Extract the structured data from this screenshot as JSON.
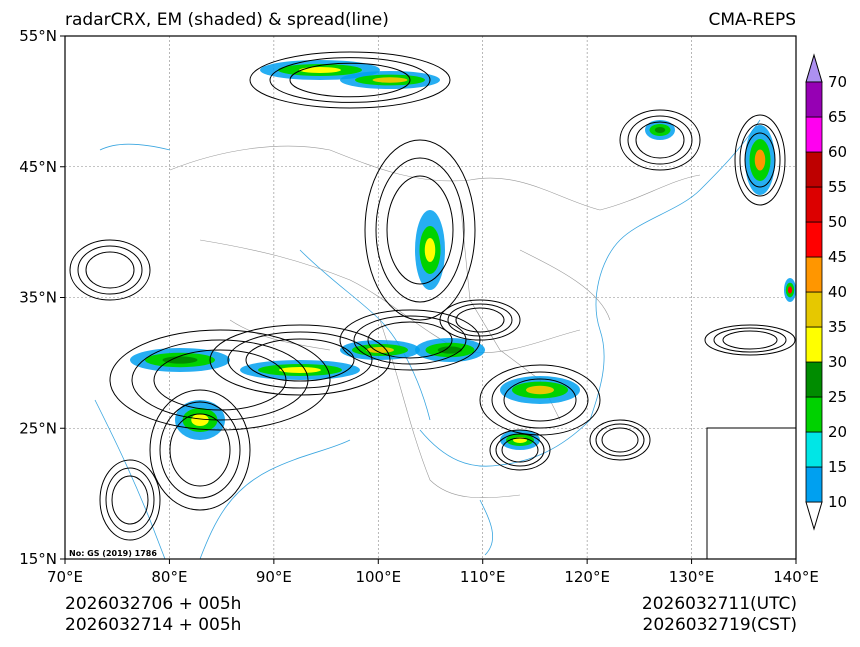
{
  "title_left": "radarCRX, EM (shaded) & spread(line)",
  "title_right": "CMA-REPS",
  "map": {
    "lon_ticks": [
      "70°E",
      "80°E",
      "90°E",
      "100°E",
      "110°E",
      "120°E",
      "130°E",
      "140°E"
    ],
    "lat_ticks": [
      "55°N",
      "45°N",
      "35°N",
      "25°N",
      "15°N"
    ],
    "map_approval_no": "No: GS (2019) 1786"
  },
  "colorbar": {
    "levels": [
      "10",
      "15",
      "20",
      "25",
      "30",
      "35",
      "40",
      "45",
      "50",
      "55",
      "60",
      "65",
      "70"
    ],
    "colors": [
      "#00a0f0",
      "#00e6e6",
      "#00d200",
      "#008c00",
      "#ffff00",
      "#e6c800",
      "#ff9600",
      "#ff0000",
      "#dc0000",
      "#be0000",
      "#ff00f0",
      "#9600b4"
    ],
    "over_color": "#ad90f0",
    "under_color": "#ffffff"
  },
  "footer": {
    "init_utc": "2026032706  +  005h",
    "init_cst": "2026032714  +  005h",
    "valid_utc": "2026032711(UTC)",
    "valid_cst": "2026032719(CST)"
  }
}
